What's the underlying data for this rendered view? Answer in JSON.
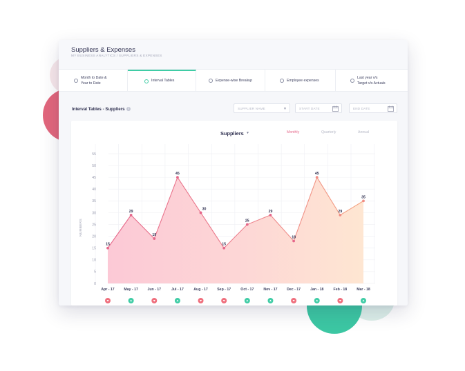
{
  "header": {
    "title": "Suppliers & Expenses",
    "breadcrumb": "MY BUSINESS ANALYTICS / SUPPLIERS & EXPENSES"
  },
  "tabs": [
    {
      "line1": "Month to Date &",
      "line2": "Year to Date",
      "active": false
    },
    {
      "line1": "Interval Tables",
      "line2": "",
      "active": true
    },
    {
      "line1": "Expense-wise Breakup",
      "line2": "",
      "active": false
    },
    {
      "line1": "Employee expenses",
      "line2": "",
      "active": false
    },
    {
      "line1": "Last year v/s",
      "line2": "Target v/s Actuals",
      "active": false
    }
  ],
  "section": {
    "title": "Interval Tables - Suppliers",
    "info_icon": "info-icon"
  },
  "filters": {
    "supplier_placeholder": "SUPPLIER NAME",
    "start_placeholder": "START DATE",
    "end_placeholder": "END DATE"
  },
  "chart_header": {
    "title": "Suppliers",
    "periods": [
      "Monthly",
      "Quarterly",
      "Annual"
    ],
    "selected_period": "Monthly"
  },
  "colors": {
    "accent_teal": "#3fcca5",
    "line_pink": "#e5678a",
    "line_orange": "#f4a582",
    "trend_down": "#ef6f7d",
    "trend_up": "#3fcca5"
  },
  "chart_data": {
    "type": "area",
    "title": "Suppliers",
    "ylabel": "NUMBERS",
    "xlabel": "",
    "ylim": [
      0,
      55
    ],
    "yticks": [
      0,
      5,
      10,
      15,
      20,
      25,
      30,
      35,
      40,
      45,
      50,
      55
    ],
    "categories": [
      "Apr - 17",
      "May - 17",
      "Jun - 17",
      "Jul - 17",
      "Aug - 17",
      "Sep - 17",
      "Oct - 17",
      "Nov - 17",
      "Dec - 17",
      "Jan - 18",
      "Feb - 18",
      "Mar - 18"
    ],
    "values": [
      15,
      29,
      19,
      45,
      30,
      15,
      25,
      29,
      18,
      45,
      29,
      35
    ],
    "data_labels": [
      "15",
      "29",
      "19",
      "45",
      "30",
      "15",
      "25",
      "29",
      "18",
      "45",
      "29",
      "35"
    ],
    "trend": [
      "down",
      "up",
      "down",
      "up",
      "down",
      "down",
      "up",
      "up",
      "down",
      "up",
      "down",
      "up"
    ],
    "grid": true,
    "legend": "none"
  }
}
